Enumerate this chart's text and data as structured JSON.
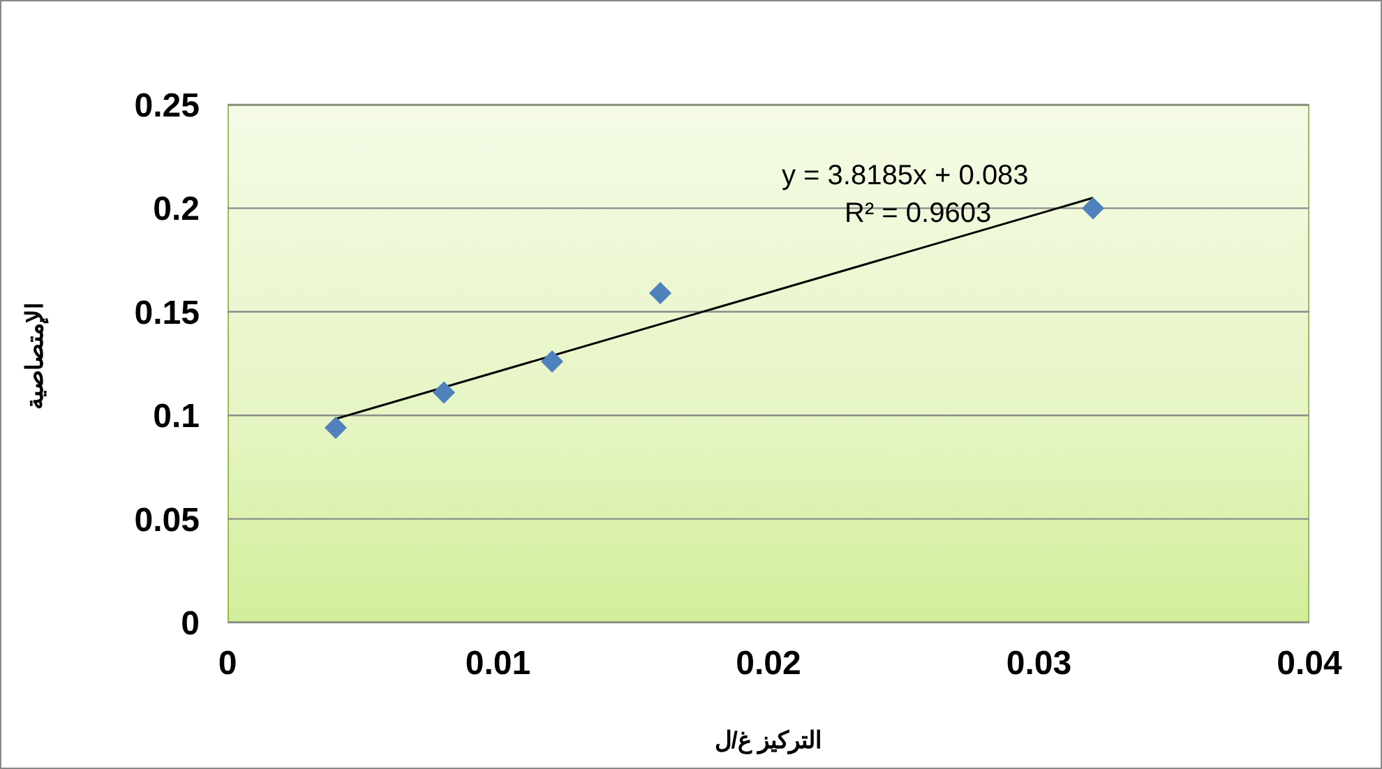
{
  "chart_data": {
    "type": "scatter",
    "xlabel": "التركيز غ/ل",
    "ylabel": "الإمتصاصية",
    "xlim": [
      0,
      0.04
    ],
    "xticks": [
      0,
      0.01,
      0.02,
      0.03,
      0.04
    ],
    "ylim": [
      0,
      0.25
    ],
    "yticks": [
      0,
      0.05,
      0.1,
      0.15,
      0.2,
      0.25
    ],
    "grid": "y",
    "legend": false,
    "series": [
      {
        "type": "scatter",
        "color": "#4f81bd",
        "marker": "diamond",
        "x": [
          0.004,
          0.008,
          0.012,
          0.016,
          0.032
        ],
        "values": [
          0.094,
          0.111,
          0.126,
          0.159,
          0.2
        ]
      },
      {
        "type": "line",
        "color": "#000000",
        "marker": "none",
        "line_style": "solid",
        "x": [
          0.004,
          0.032
        ],
        "values": [
          0.0983,
          0.205
        ]
      }
    ],
    "annotations": [
      "y = 3.8185x + 0.083",
      "R² = 0.9603"
    ]
  }
}
